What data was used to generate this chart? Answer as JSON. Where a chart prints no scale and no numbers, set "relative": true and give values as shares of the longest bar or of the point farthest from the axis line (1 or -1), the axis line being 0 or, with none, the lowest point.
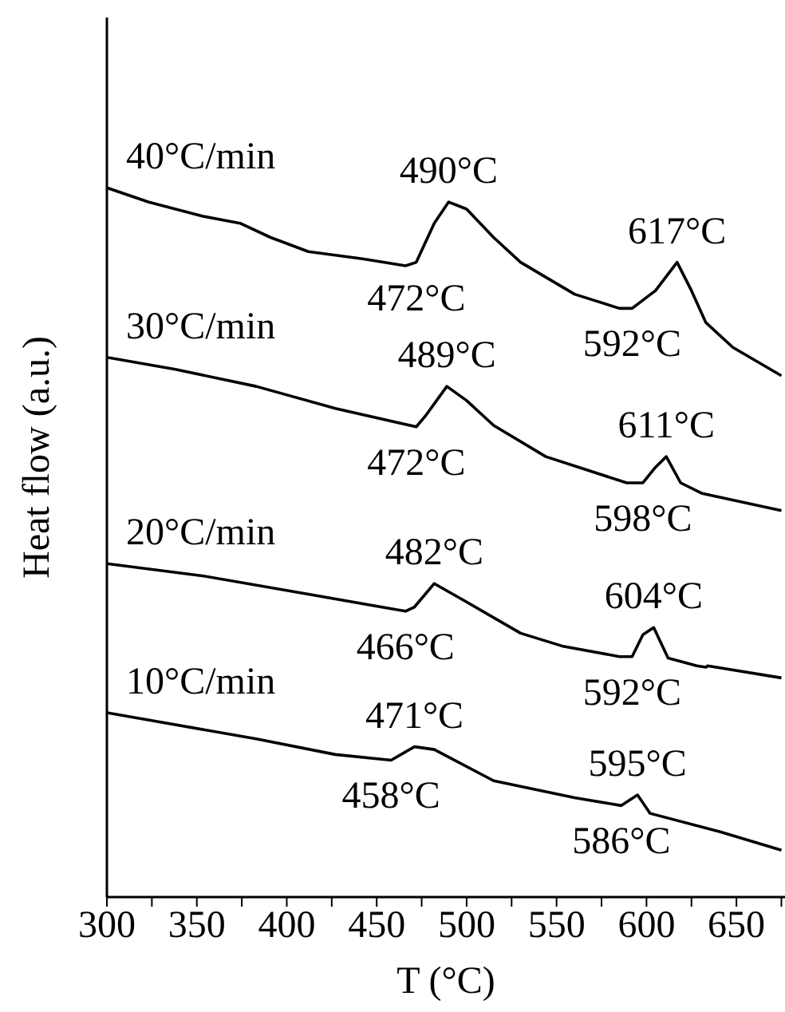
{
  "chart_data": {
    "type": "line",
    "relative": true,
    "xlabel": "T (°C)",
    "ylabel": "Heat flow (a.u.)",
    "xlim": [
      300,
      677
    ],
    "xticks": [
      300,
      {
        "value": 325,
        "label": null
      },
      350,
      {
        "value": 375,
        "label": null
      },
      400,
      {
        "value": 425,
        "label": null
      },
      450,
      {
        "value": 475,
        "label": null
      },
      500,
      {
        "value": 525,
        "label": null
      },
      550,
      {
        "value": 575,
        "label": null
      },
      600,
      {
        "value": 625,
        "label": null
      },
      650,
      {
        "value": 675,
        "label": null
      }
    ],
    "series": [
      {
        "name": "40°C/min",
        "color": "#000000",
        "x": [
          300,
          323,
          353,
          374,
          391,
          412,
          442,
          466,
          472,
          482,
          490,
          500,
          515,
          530,
          560,
          585,
          592,
          605,
          617,
          625,
          633,
          648,
          675
        ],
        "values": [
          1.0,
          0.98,
          0.96,
          0.95,
          0.93,
          0.91,
          0.9,
          0.89,
          0.895,
          0.95,
          0.98,
          0.97,
          0.93,
          0.895,
          0.85,
          0.83,
          0.83,
          0.855,
          0.895,
          0.855,
          0.81,
          0.775,
          0.735
        ]
      },
      {
        "name": "30°C/min",
        "color": "#000000",
        "x": [
          300,
          338,
          383,
          427,
          472,
          477,
          489,
          500,
          515,
          544,
          589,
          598,
          605,
          611,
          619,
          631,
          675
        ],
        "values": [
          0.761,
          0.744,
          0.72,
          0.689,
          0.663,
          0.678,
          0.72,
          0.7,
          0.665,
          0.621,
          0.584,
          0.584,
          0.606,
          0.621,
          0.584,
          0.569,
          0.545
        ]
      },
      {
        "name": "20°C/min",
        "color": "#000000",
        "x": [
          300,
          353,
          412,
          466,
          471,
          482,
          500,
          530,
          553,
          585,
          592,
          598,
          604,
          612,
          628,
          633,
          634,
          675
        ],
        "values": [
          0.47,
          0.453,
          0.427,
          0.403,
          0.409,
          0.442,
          0.416,
          0.372,
          0.354,
          0.339,
          0.339,
          0.37,
          0.38,
          0.337,
          0.326,
          0.324,
          0.326,
          0.309
        ]
      },
      {
        "name": "10°C/min",
        "color": "#000000",
        "x": [
          300,
          383,
          427,
          458,
          471,
          482,
          515,
          560,
          586,
          595,
          602,
          641,
          675
        ],
        "values": [
          0.26,
          0.223,
          0.201,
          0.193,
          0.212,
          0.208,
          0.164,
          0.14,
          0.129,
          0.144,
          0.118,
          0.092,
          0.066
        ]
      }
    ],
    "annotations": [
      {
        "text": "490°C",
        "x": 490,
        "y": 0.98
      },
      {
        "text": "617°C",
        "x": 617,
        "y": 0.895
      },
      {
        "text": "472°C",
        "x": 472,
        "y": 0.895
      },
      {
        "text": "592°C",
        "x": 592,
        "y": 0.83
      },
      {
        "text": "489°C",
        "x": 489,
        "y": 0.72
      },
      {
        "text": "611°C",
        "x": 611,
        "y": 0.621
      },
      {
        "text": "472°C",
        "x": 472,
        "y": 0.663
      },
      {
        "text": "598°C",
        "x": 598,
        "y": 0.584
      },
      {
        "text": "482°C",
        "x": 482,
        "y": 0.442
      },
      {
        "text": "604°C",
        "x": 604,
        "y": 0.38
      },
      {
        "text": "466°C",
        "x": 466,
        "y": 0.403
      },
      {
        "text": "592°C",
        "x": 592,
        "y": 0.339
      },
      {
        "text": "471°C",
        "x": 471,
        "y": 0.212
      },
      {
        "text": "595°C",
        "x": 595,
        "y": 0.144
      },
      {
        "text": "458°C",
        "x": 458,
        "y": 0.193
      },
      {
        "text": "586°C",
        "x": 586,
        "y": 0.129
      }
    ]
  }
}
